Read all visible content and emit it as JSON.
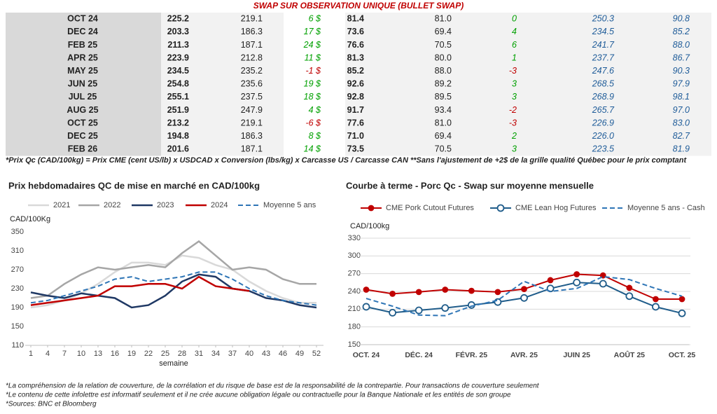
{
  "header": {
    "title": "SWAP SUR OBSERVATION UNIQUE (BULLET SWAP)"
  },
  "table": {
    "rows": [
      [
        "OCT 24",
        "225.2",
        "219.1",
        "6 $",
        "81.4",
        "81.0",
        "0",
        "250.3",
        "90.8"
      ],
      [
        "DEC 24",
        "203.3",
        "186.3",
        "17 $",
        "73.6",
        "69.4",
        "4",
        "234.5",
        "85.2"
      ],
      [
        "FEB 25",
        "211.3",
        "187.1",
        "24 $",
        "76.6",
        "70.5",
        "6",
        "241.7",
        "88.0"
      ],
      [
        "APR 25",
        "223.9",
        "212.8",
        "11 $",
        "81.3",
        "80.0",
        "1",
        "237.7",
        "86.7"
      ],
      [
        "MAY 25",
        "234.5",
        "235.2",
        "-1 $",
        "85.2",
        "88.0",
        "-3",
        "247.6",
        "90.3"
      ],
      [
        "JUN 25",
        "254.8",
        "235.6",
        "19 $",
        "92.6",
        "89.2",
        "3",
        "268.5",
        "97.9"
      ],
      [
        "JUL 25",
        "255.1",
        "237.5",
        "18 $",
        "92.8",
        "89.5",
        "3",
        "268.9",
        "98.1"
      ],
      [
        "AUG 25",
        "251.9",
        "247.9",
        "4 $",
        "91.7",
        "93.4",
        "-2",
        "265.7",
        "97.0"
      ],
      [
        "OCT 25",
        "213.2",
        "219.1",
        "-6 $",
        "77.6",
        "81.0",
        "-3",
        "226.9",
        "83.0"
      ],
      [
        "DEC 25",
        "194.8",
        "186.3",
        "8 $",
        "71.0",
        "69.4",
        "2",
        "226.0",
        "82.7"
      ],
      [
        "FEB 26",
        "201.6",
        "187.1",
        "14 $",
        "73.5",
        "70.5",
        "3",
        "223.5",
        "81.9"
      ]
    ],
    "note": "*Prix Qc (CAD/100kg) = Prix CME (cent US/lb) x USDCAD x Conversion (lbs/kg) x Carcasse US / Carcasse CAN **Sans l'ajustement de +2$ de la grille qualité Québec pour le prix comptant"
  },
  "chart_data": [
    {
      "type": "line",
      "title": "Prix hebdomadaires QC de mise en marché en CAD/100kg",
      "y_label": "CAD/100Kg",
      "x_label": "semaine",
      "x": [
        1,
        4,
        7,
        10,
        13,
        16,
        19,
        22,
        25,
        28,
        31,
        34,
        37,
        40,
        43,
        46,
        49,
        52
      ],
      "xlim": [
        1,
        52
      ],
      "xticks": [
        1,
        4,
        7,
        10,
        13,
        16,
        19,
        22,
        25,
        28,
        31,
        34,
        37,
        40,
        43,
        46,
        49,
        52
      ],
      "ylim": [
        110,
        350
      ],
      "yticks": [
        110,
        150,
        190,
        230,
        270,
        310,
        350
      ],
      "grid": false,
      "series": [
        {
          "name": "2021",
          "color": "#d9d9d9",
          "dash": false,
          "values": [
            190,
            195,
            205,
            220,
            240,
            265,
            285,
            285,
            280,
            300,
            295,
            280,
            270,
            245,
            225,
            210,
            200,
            200
          ]
        },
        {
          "name": "2022",
          "color": "#a6a6a6",
          "dash": false,
          "values": [
            210,
            215,
            240,
            260,
            275,
            270,
            275,
            280,
            275,
            305,
            330,
            300,
            270,
            275,
            270,
            250,
            240,
            240
          ]
        },
        {
          "name": "2023",
          "color": "#1f3864",
          "dash": false,
          "values": [
            222,
            215,
            210,
            220,
            215,
            210,
            190,
            195,
            215,
            245,
            260,
            255,
            230,
            225,
            210,
            205,
            195,
            190
          ]
        },
        {
          "name": "2024",
          "color": "#c00000",
          "dash": false,
          "values": [
            195,
            200,
            205,
            210,
            215,
            235,
            235,
            240,
            240,
            230,
            255,
            235,
            230,
            225,
            null,
            null,
            null,
            null
          ]
        },
        {
          "name": "Moyenne 5 ans",
          "color": "#2e75b6",
          "dash": true,
          "values": [
            200,
            205,
            215,
            225,
            235,
            250,
            255,
            245,
            250,
            255,
            265,
            265,
            250,
            230,
            215,
            205,
            200,
            195
          ]
        }
      ]
    },
    {
      "type": "line",
      "title": "Courbe à terme - Porc Qc - Swap sur moyenne mensuelle",
      "y_label": "CAD/100kg",
      "categories": [
        "OCT. 24",
        null,
        "DÉC. 24",
        null,
        "FÉVR. 25",
        null,
        "AVR. 25",
        null,
        "JUIN 25",
        null,
        "AOÛT 25",
        null,
        "OCT. 25"
      ],
      "ylim": [
        150,
        330
      ],
      "yticks": [
        150,
        180,
        210,
        240,
        270,
        300,
        330
      ],
      "grid": true,
      "series": [
        {
          "name": "CME Pork Cutout Futures",
          "color": "#c00000",
          "dash": false,
          "marker": "filled",
          "values": [
            243,
            236,
            239,
            243,
            241,
            239,
            244,
            259,
            269,
            267,
            246,
            227,
            227
          ]
        },
        {
          "name": "CME Lean Hog Futures",
          "color": "#1f5c8a",
          "dash": false,
          "marker": "open",
          "values": [
            214,
            204,
            208,
            212,
            217,
            222,
            229,
            245,
            255,
            253,
            232,
            214,
            203
          ]
        },
        {
          "name": "Moyenne 5 ans - Cash",
          "color": "#2e75b6",
          "dash": true,
          "values": [
            228,
            215,
            200,
            199,
            215,
            225,
            257,
            240,
            245,
            265,
            260,
            245,
            232
          ]
        }
      ]
    }
  ],
  "footnotes": [
    "*La compréhension de la relation de couverture, de la corrélation et du risque de base est de la responsabilité de la contrepartie. Pour transactions de couverture seulement",
    "*Le contenu de cette infolettre est informatif seulement et il ne crée aucune obligation légale ou contractuelle pour la Banque Nationale et les entités de son groupe",
    "*Sources: BNC et Bloomberg"
  ]
}
